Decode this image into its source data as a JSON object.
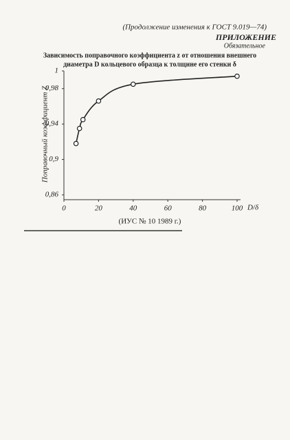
{
  "header": {
    "note": "(Продолжение изменения к ГОСТ 9.019—74)",
    "title": "ПРИЛОЖЕНИЕ",
    "subtitle": "Обязательное"
  },
  "chart_data": {
    "type": "line",
    "title": [
      "Зависимость поправочного коэффициента z от отношения внешнего",
      "диаметра D кольцевого образца к толщине его стенки δ"
    ],
    "y_label": "Поправочный коэффициент Z",
    "x_label": "D/δ",
    "x": [
      7,
      9,
      11,
      20,
      40,
      100
    ],
    "series": [
      {
        "color": "#222222",
        "values": [
          0.918,
          0.935,
          0.945,
          0.966,
          0.985,
          0.994
        ]
      }
    ],
    "xlim": [
      0,
      100
    ],
    "xticks": [
      0,
      20,
      40,
      60,
      80,
      100
    ],
    "ylim": [
      0.86,
      1
    ],
    "yticks": [
      {
        "value": 0.86,
        "label": "0,86"
      },
      {
        "value": 0.9,
        "label": "0,9"
      },
      {
        "value": 0.94,
        "label": "0,94"
      },
      {
        "value": 0.98,
        "label": "0,98"
      },
      1
    ],
    "grid": false
  },
  "footer": "(ИУС № 10 1989 г.)"
}
